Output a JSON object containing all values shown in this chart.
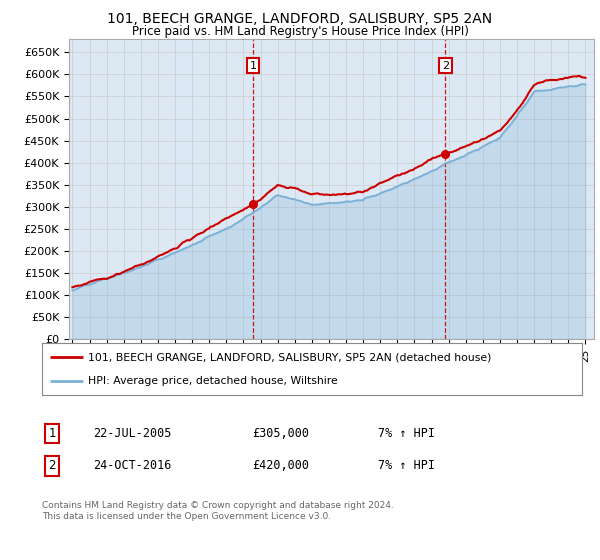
{
  "title": "101, BEECH GRANGE, LANDFORD, SALISBURY, SP5 2AN",
  "subtitle": "Price paid vs. HM Land Registry's House Price Index (HPI)",
  "ylabel_ticks": [
    "£0",
    "£50K",
    "£100K",
    "£150K",
    "£200K",
    "£250K",
    "£300K",
    "£350K",
    "£400K",
    "£450K",
    "£500K",
    "£550K",
    "£600K",
    "£650K"
  ],
  "ytick_values": [
    0,
    50000,
    100000,
    150000,
    200000,
    250000,
    300000,
    350000,
    400000,
    450000,
    500000,
    550000,
    600000,
    650000
  ],
  "ylim": [
    0,
    680000
  ],
  "purchase1_date": 2005.55,
  "purchase1_price": 305000,
  "purchase2_date": 2016.81,
  "purchase2_price": 420000,
  "purchase1_label": "22-JUL-2005",
  "purchase1_amount": "£305,000",
  "purchase1_hpi": "7% ↑ HPI",
  "purchase2_label": "24-OCT-2016",
  "purchase2_amount": "£420,000",
  "purchase2_hpi": "7% ↑ HPI",
  "legend_line1": "101, BEECH GRANGE, LANDFORD, SALISBURY, SP5 2AN (detached house)",
  "legend_line2": "HPI: Average price, detached house, Wiltshire",
  "footer": "Contains HM Land Registry data © Crown copyright and database right 2024.\nThis data is licensed under the Open Government Licence v3.0.",
  "bg_color": "#dce9f5",
  "plot_bg": "#ffffff",
  "red_color": "#cc0000",
  "blue_color": "#7bafd4",
  "grid_color": "#cccccc",
  "vline_color": "#cc0000",
  "box_color": "#cc0000",
  "title_fontsize": 10,
  "subtitle_fontsize": 8.5
}
